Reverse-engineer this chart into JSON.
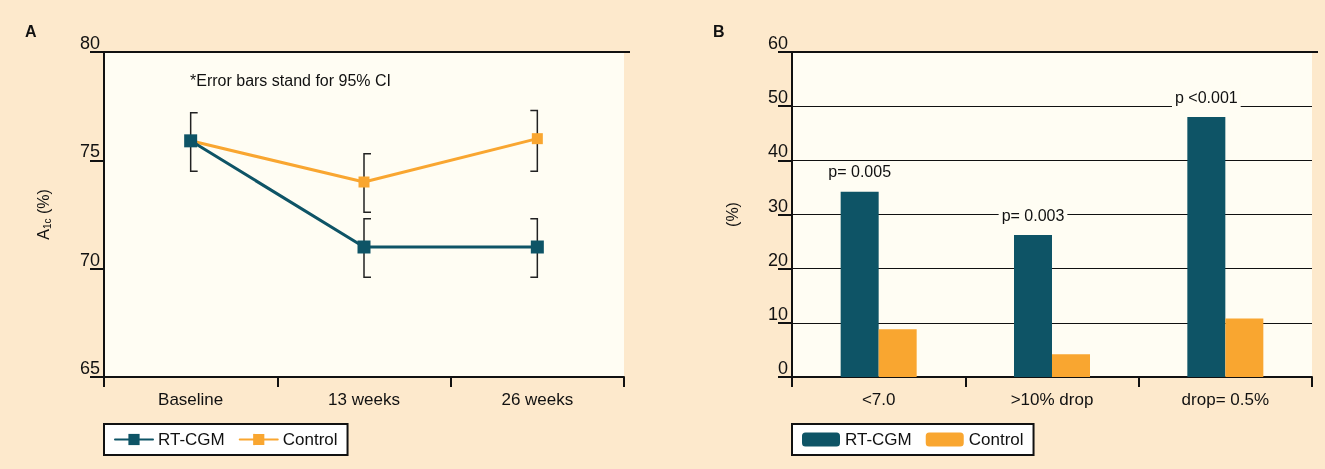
{
  "chart_data": [
    {
      "type": "line",
      "title": "A",
      "ylabel": "A$_{1c}$ (%)",
      "categories": [
        "Baseline",
        "13 weeks",
        "26 weeks"
      ],
      "series": [
        {
          "name": "RT-CGM",
          "color": "#0e5466",
          "values": [
            75.9,
            71.0,
            71.0
          ],
          "errors": [
            [
              74.5,
              77.2
            ],
            [
              69.6,
              72.3
            ],
            [
              69.6,
              72.3
            ]
          ]
        },
        {
          "name": "Control",
          "color": "#f9a630",
          "values": [
            75.9,
            74.0,
            76.0
          ],
          "errors": [
            null,
            [
              72.6,
              75.3
            ],
            [
              74.5,
              77.3
            ]
          ]
        }
      ],
      "ylim": [
        65,
        80
      ],
      "yticks": [
        65,
        70,
        75,
        80
      ],
      "grid": false,
      "legend": "bottom left",
      "marker": "square",
      "line_style": "solid",
      "annotations": [
        "*Error bars stand for 95% CI"
      ]
    },
    {
      "type": "bar",
      "title": "B",
      "ylabel": "(%)",
      "categories": [
        "<7.0",
        ">10% drop",
        "drop= 0.5%"
      ],
      "series": [
        {
          "name": "RT-CGM",
          "color": "#0e5466",
          "values": [
            34.2,
            26.2,
            48.0
          ]
        },
        {
          "name": "Control",
          "color": "#f9a630",
          "values": [
            8.8,
            4.2,
            10.8
          ]
        }
      ],
      "ylim": [
        0,
        60
      ],
      "yticks": [
        0,
        10,
        20,
        30,
        40,
        50,
        60
      ],
      "grid": "y",
      "legend": "bottom left",
      "annotations": [
        "p= 0.005",
        "p= 0.003",
        "p <0.001"
      ]
    }
  ]
}
